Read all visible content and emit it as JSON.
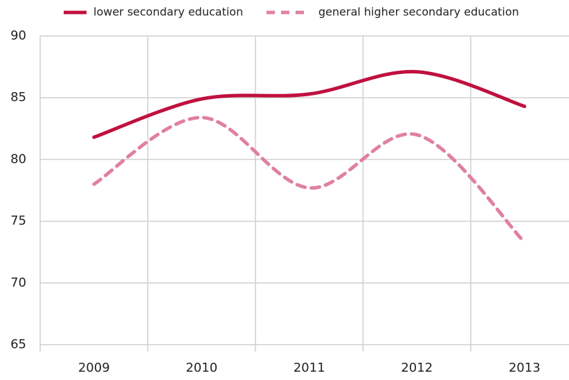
{
  "chart_data": {
    "type": "line",
    "categories": [
      "2009",
      "2010",
      "2011",
      "2012",
      "2013"
    ],
    "series": [
      {
        "name": "lower secondary education",
        "color": "#c0103f",
        "dash": false,
        "values": [
          81.8,
          84.9,
          85.3,
          87.1,
          84.3
        ]
      },
      {
        "name": "general higher secondary education",
        "color": "#e0809f",
        "dash": true,
        "values": [
          78.0,
          83.4,
          77.7,
          82.0,
          73.3
        ]
      }
    ],
    "ylim": [
      65,
      90
    ],
    "yticks": [
      65,
      70,
      75,
      80,
      85,
      90
    ],
    "grid": true,
    "smooth": true,
    "legend": "top"
  }
}
